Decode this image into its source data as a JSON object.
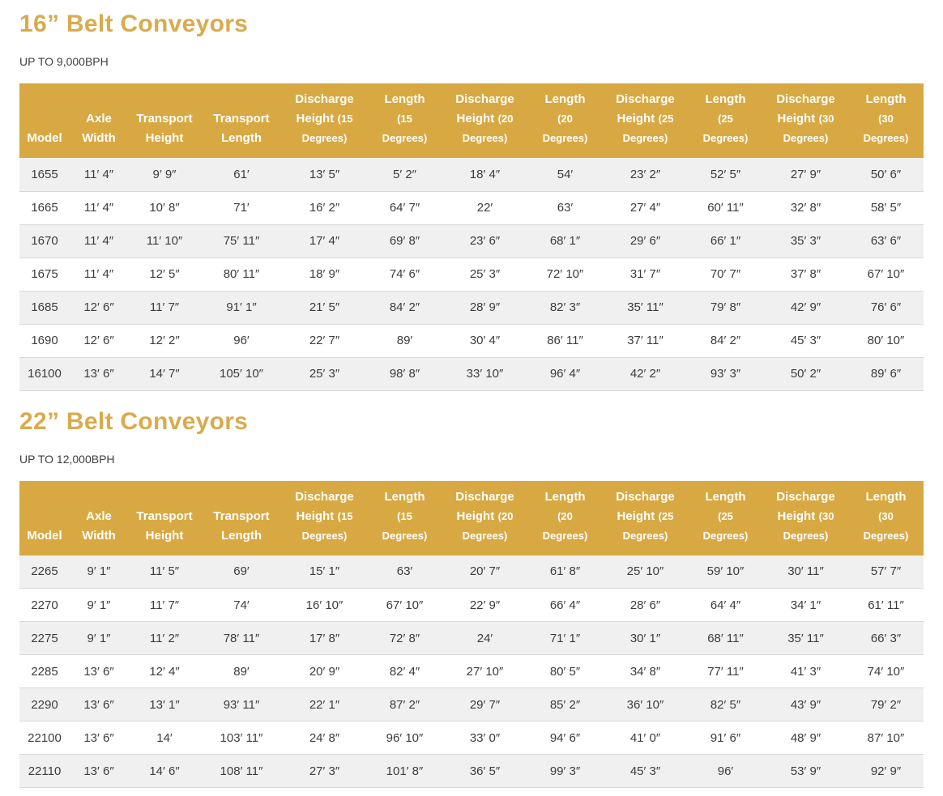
{
  "colors": {
    "accent_gold_header": "#d8a942",
    "title_gold": "#d9ab4c",
    "header_text": "#ffffff",
    "body_text": "#3c3c3c",
    "row_alt_background": "#f0f0f0",
    "row_border": "#d8d8d8"
  },
  "column_headers": [
    {
      "label": "Model",
      "lines": [
        [
          [
            "Model",
            "lg"
          ]
        ]
      ]
    },
    {
      "label": "Axle Width",
      "lines": [
        [
          [
            "Axle",
            "lg"
          ]
        ],
        [
          [
            "Width",
            "lg"
          ]
        ]
      ]
    },
    {
      "label": "Transport Height",
      "lines": [
        [
          [
            "Transport",
            "lg"
          ]
        ],
        [
          [
            "Height",
            "lg"
          ]
        ]
      ]
    },
    {
      "label": "Transport Length",
      "lines": [
        [
          [
            "Transport",
            "lg"
          ]
        ],
        [
          [
            "Length",
            "lg"
          ]
        ]
      ]
    },
    {
      "label": "Discharge Height (15 Degrees)",
      "lines": [
        [
          [
            "Discharge",
            "lg"
          ]
        ],
        [
          [
            "Height",
            "lg"
          ],
          [
            "(15",
            "sm"
          ]
        ],
        [
          [
            "Degrees)",
            "sm"
          ]
        ]
      ]
    },
    {
      "label": "Length (15 Degrees)",
      "lines": [
        [
          [
            "Length",
            "lg"
          ]
        ],
        [
          [
            "(15",
            "sm"
          ]
        ],
        [
          [
            "Degrees)",
            "sm"
          ]
        ]
      ]
    },
    {
      "label": "Discharge Height (20 Degrees)",
      "lines": [
        [
          [
            "Discharge",
            "lg"
          ]
        ],
        [
          [
            "Height",
            "lg"
          ],
          [
            "(20",
            "sm"
          ]
        ],
        [
          [
            "Degrees)",
            "sm"
          ]
        ]
      ]
    },
    {
      "label": "Length (20 Degrees)",
      "lines": [
        [
          [
            "Length",
            "lg"
          ]
        ],
        [
          [
            "(20",
            "sm"
          ]
        ],
        [
          [
            "Degrees)",
            "sm"
          ]
        ]
      ]
    },
    {
      "label": "Discharge Height (25 Degrees)",
      "lines": [
        [
          [
            "Discharge",
            "lg"
          ]
        ],
        [
          [
            "Height",
            "lg"
          ],
          [
            "(25",
            "sm"
          ]
        ],
        [
          [
            "Degrees)",
            "sm"
          ]
        ]
      ]
    },
    {
      "label": "Length (25 Degrees)",
      "lines": [
        [
          [
            "Length",
            "lg"
          ]
        ],
        [
          [
            "(25",
            "sm"
          ]
        ],
        [
          [
            "Degrees)",
            "sm"
          ]
        ]
      ]
    },
    {
      "label": "Discharge Height (30 Degrees)",
      "lines": [
        [
          [
            "Discharge",
            "lg"
          ]
        ],
        [
          [
            "Height",
            "lg"
          ],
          [
            "(30",
            "sm"
          ]
        ],
        [
          [
            "Degrees)",
            "sm"
          ]
        ]
      ]
    },
    {
      "label": "Length (30 Degrees)",
      "lines": [
        [
          [
            "Length",
            "lg"
          ]
        ],
        [
          [
            "(30",
            "sm"
          ]
        ],
        [
          [
            "Degrees)",
            "sm"
          ]
        ]
      ]
    }
  ],
  "sections": [
    {
      "title": "16” Belt Conveyors",
      "subtitle": "UP TO 9,000BPH",
      "table": {
        "rows": [
          [
            "1655",
            "11′ 4″",
            "9′ 9″",
            "61′",
            "13′ 5″",
            "5′ 2″",
            "18′ 4″",
            "54′",
            "23′ 2″",
            "52′ 5″",
            "27′ 9″",
            "50′ 6″"
          ],
          [
            "1665",
            "11′ 4″",
            "10′ 8″",
            "71′",
            "16′ 2″",
            "64′ 7″",
            "22′",
            "63′",
            "27′ 4″",
            "60′ 11″",
            "32′ 8″",
            "58′ 5″"
          ],
          [
            "1670",
            "11′ 4″",
            "11′ 10″",
            "75′ 11″",
            "17′ 4″",
            "69′ 8″",
            "23′ 6″",
            "68′ 1″",
            "29′ 6″",
            "66′ 1″",
            "35′ 3″",
            "63′ 6″"
          ],
          [
            "1675",
            "11′ 4″",
            "12′ 5″",
            "80′ 11″",
            "18′ 9″",
            "74′ 6″",
            "25′ 3″",
            "72′ 10″",
            "31′ 7″",
            "70′ 7″",
            "37′ 8″",
            "67′ 10″"
          ],
          [
            "1685",
            "12′ 6″",
            "11′ 7″",
            "91′ 1″",
            "21′ 5″",
            "84′ 2″",
            "28′ 9″",
            "82′ 3″",
            "35′ 11″",
            "79′ 8″",
            "42′ 9″",
            "76′ 6″"
          ],
          [
            "1690",
            "12′ 6″",
            "12′ 2″",
            "96′",
            "22′ 7″",
            "89′",
            "30′ 4″",
            "86′ 11″",
            "37′ 11″",
            "84′ 2″",
            "45′ 3″",
            "80′ 10″"
          ],
          [
            "16100",
            "13′ 6″",
            "14′ 7″",
            "105′ 10″",
            "25′ 3″",
            "98′ 8″",
            "33′ 10″",
            "96′ 4″",
            "42′ 2″",
            "93′ 3″",
            "50′ 2″",
            "89′ 6″"
          ]
        ]
      }
    },
    {
      "title": "22” Belt Conveyors",
      "subtitle": "UP TO 12,000BPH",
      "table": {
        "rows": [
          [
            "2265",
            "9′ 1″",
            "11′ 5″",
            "69′",
            "15′ 1″",
            "63′",
            "20′ 7″",
            "61′ 8″",
            "25′ 10″",
            "59′ 10″",
            "30′ 11″",
            "57′ 7″"
          ],
          [
            "2270",
            "9′ 1″",
            "11′ 7″",
            "74′",
            "16′ 10″",
            "67′ 10″",
            "22′ 9″",
            "66′ 4″",
            "28′ 6″",
            "64′ 4″",
            "34′ 1″",
            "61′ 11″"
          ],
          [
            "2275",
            "9′ 1″",
            "11′ 2″",
            "78′ 11″",
            "17′ 8″",
            "72′ 8″",
            "24′",
            "71′ 1″",
            "30′ 1″",
            "68′ 11″",
            "35′ 11″",
            "66′ 3″"
          ],
          [
            "2285",
            "13′ 6″",
            "12′ 4″",
            "89′",
            "20′ 9″",
            "82′ 4″",
            "27′ 10″",
            "80′ 5″",
            "34′ 8″",
            "77′ 11″",
            "41′ 3″",
            "74′ 10″"
          ],
          [
            "2290",
            "13′ 6″",
            "13′ 1″",
            "93′ 11″",
            "22′ 1″",
            "87′ 2″",
            "29′ 7″",
            "85′ 2″",
            "36′ 10″",
            "82′ 5″",
            "43′ 9″",
            "79′ 2″"
          ],
          [
            "22100",
            "13′ 6″",
            "14′",
            "103′ 11″",
            "24′ 8″",
            "96′ 10″",
            "33′ 0″",
            "94′ 6″",
            "41′ 0″",
            "91′ 6″",
            "48′ 9″",
            "87′ 10″"
          ],
          [
            "22110",
            "13′ 6″",
            "14′ 6″",
            "108′ 11″",
            "27′ 3″",
            "101′ 8″",
            "36′ 5″",
            "99′ 3″",
            "45′ 3″",
            "96′",
            "53′ 9″",
            "92′ 9″"
          ]
        ]
      }
    }
  ]
}
